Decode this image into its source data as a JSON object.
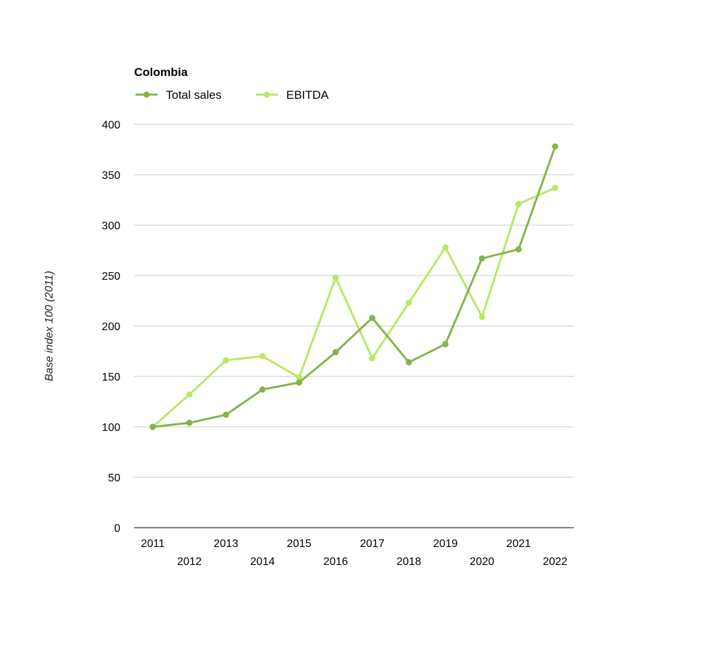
{
  "chart_data": {
    "type": "line",
    "title": "Colombia",
    "ylabel": "Base index 100 (2011)",
    "xlabel": "",
    "ylim": [
      0,
      400
    ],
    "yticks": [
      "0",
      "50",
      "100",
      "150",
      "200",
      "250",
      "300",
      "350",
      "400"
    ],
    "categories": [
      "2011",
      "2012",
      "2013",
      "2014",
      "2015",
      "2016",
      "2017",
      "2018",
      "2019",
      "2020",
      "2021",
      "2022"
    ],
    "grid": true,
    "legend_position": "top-left",
    "series": [
      {
        "name": "Total sales",
        "color": "#86b34a",
        "values": [
          100,
          104,
          112,
          137,
          144,
          174,
          208,
          164,
          182,
          267,
          276,
          378
        ]
      },
      {
        "name": "EBITDA",
        "color": "#b9e765",
        "values": [
          100,
          132,
          166,
          170,
          149,
          248,
          168,
          223,
          278,
          209,
          321,
          337
        ]
      }
    ]
  }
}
